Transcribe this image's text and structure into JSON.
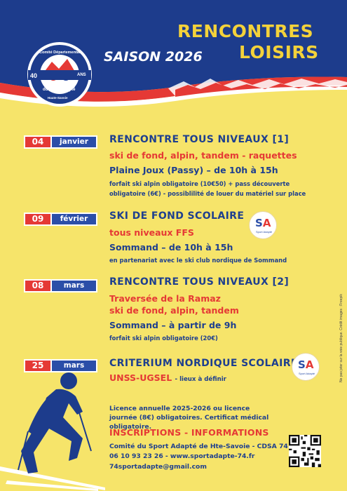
{
  "header": {
    "title_line1": "RENCONTRES",
    "title_line2": "LOISIRS",
    "saison": "SAISON 2026",
    "badge": {
      "top": "Comité Départemental",
      "number": "40",
      "ans": "ANS",
      "bottom": "du Sport Adapté",
      "footer": "Haute-Savoie"
    }
  },
  "events": [
    {
      "day": "04",
      "month": "janvier",
      "title": "RENCONTRE TOUS NIVEAUX [1]",
      "red": [
        "ski de fond, alpin, tandem - raquettes"
      ],
      "place": "Plaine Joux (Passy) – de 10h à 15h",
      "notes": [
        "forfait ski alpin obligatoire (10€50) + pass découverte",
        "obligatoire (6€) - possiblilité de louer du matériel sur place"
      ]
    },
    {
      "day": "09",
      "month": "février",
      "title": "SKI DE FOND SCOLAIRE",
      "red": [
        "tous niveaux FFS"
      ],
      "place": "Sommand – de 10h à 15h",
      "notes": [
        "en partenariat avec le ski club nordique de Sommand"
      ]
    },
    {
      "day": "08",
      "month": "mars",
      "title": "RENCONTRE TOUS NIVEAUX [2]",
      "red": [
        "Traversée de la Ramaz"
      ],
      "blue_extra": "ski de fond, alpin, tandem",
      "place": "Sommand – à partir de 9h",
      "notes": [
        "forfait ski alpin obligatoire (20€)"
      ]
    },
    {
      "day": "25",
      "month": "mars",
      "title": "CRITERIUM NORDIQUE SCOLAIRE",
      "red": [
        "UNSS-UGSEL"
      ],
      "suffix": "- lieux à définir"
    }
  ],
  "sa_logo": {
    "s": "S",
    "a": "A",
    "sub": "Sport Adapté"
  },
  "licence": "Licence annuelle 2025-2026 ou licence journée (8€) obligatoires. Certificat médical obligatoire.",
  "inscriptions": "INSCRIPTIONS - INFORMATIONS",
  "contact": {
    "line1": "Comité du Sport Adapté de Hte-Savoie - CDSA 74",
    "line2": "06 10 93 23 26 - www.sportadapte-74.fr",
    "line3": "74sportadapte@gmail.com"
  },
  "sideways": "Ne pas jeter sur la voie publique. Crédit images : Freepik",
  "colors": {
    "background": "#f6e46a",
    "navy": "#1e3f8f",
    "red": "#e53935",
    "accent_yellow": "#f4d23a"
  }
}
